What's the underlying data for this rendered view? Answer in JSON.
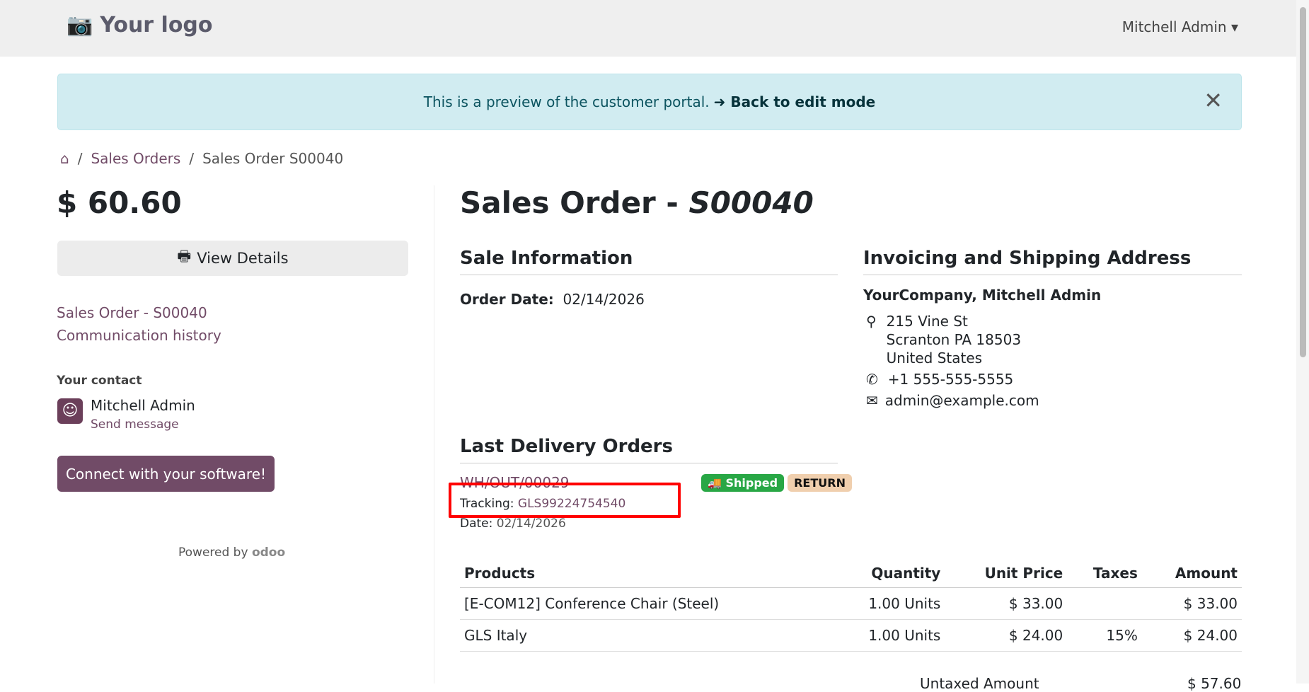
{
  "header": {
    "logo": "Your logo",
    "user": "Mitchell Admin"
  },
  "alert": {
    "text": "This is a preview of the customer portal.",
    "link": "Back to edit mode"
  },
  "breadcrumb": [
    "Sales Orders",
    "Sales Order S00040"
  ],
  "sidebar": {
    "amount": "$ 60.60",
    "view_details": "View Details",
    "links": [
      "Sales Order - S00040",
      "Communication history"
    ],
    "contact_label": "Your contact",
    "contact_name": "Mitchell Admin",
    "send_message": "Send message",
    "connect": "Connect with your software!",
    "powered": "Powered by",
    "brand": "odoo"
  },
  "main": {
    "title": "Sales Order - ",
    "order_ref": "S00040",
    "sale_info": {
      "heading": "Sale Information",
      "date_label": "Order Date:",
      "date": "02/14/2026"
    },
    "address": {
      "heading": "Invoicing and Shipping Address",
      "name": "YourCompany, Mitchell Admin",
      "street": "215 Vine St",
      "city": "Scranton PA 18503",
      "country": "United States",
      "phone": "+1 555-555-5555",
      "email": "admin@example.com"
    },
    "delivery": {
      "heading": "Last Delivery Orders",
      "ref": "WH/OUT/00029",
      "status": "Shipped",
      "return": "RETURN",
      "tracking_label": "Tracking:",
      "tracking": "GLS99224754540",
      "date_label": "Date:",
      "date": "02/14/2026"
    },
    "table": {
      "headers": [
        "Products",
        "Quantity",
        "Unit Price",
        "Taxes",
        "Amount"
      ],
      "rows": [
        [
          "[E-COM12] Conference Chair (Steel)",
          "1.00 Units",
          "$ 33.00",
          "",
          "$ 33.00"
        ],
        [
          "GLS Italy",
          "1.00 Units",
          "$ 24.00",
          "15%",
          "$ 24.00"
        ]
      ]
    },
    "untaxed_label": "Untaxed Amount",
    "untaxed": "$ 57.60"
  },
  "colors": {
    "brand": "#714b67",
    "shipped": "#28a745",
    "return": "#f0cfae",
    "highlight": "#ff0000"
  }
}
